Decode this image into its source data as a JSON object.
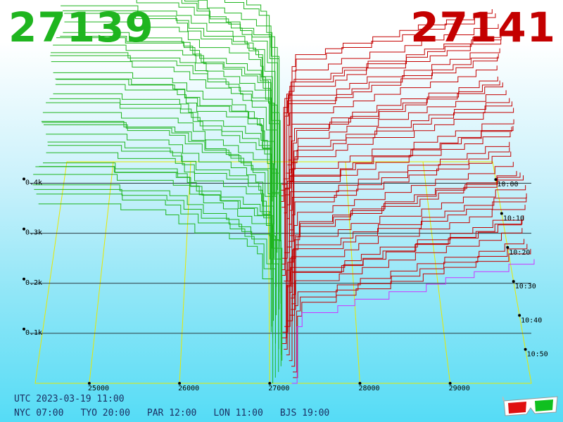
{
  "header": {
    "bid": "27139",
    "ask": "27141"
  },
  "footer": {
    "utc": "UTC 2023-03-19 11:00",
    "cities": [
      "NYC 07:00",
      "TYO 20:00",
      "PAR 12:00",
      "LON 11:00",
      "BJS 19:00"
    ]
  },
  "icons": {
    "glasses": "3d-glasses-icon"
  },
  "colors": {
    "bid": "#1fb51f",
    "ask": "#c40000",
    "latest": "#cc33ff",
    "grid": "#e8e800"
  },
  "chart_data": {
    "type": "3d-depth-waterfall",
    "price_ticks": [
      25000,
      26000,
      27000,
      28000,
      29000
    ],
    "volume_ticks": [
      "0.1k",
      "0.2k",
      "0.3k",
      "0.4k"
    ],
    "time_ticks": [
      "10:00",
      "10:10",
      "10:20",
      "10:30",
      "10:40",
      "10:50"
    ],
    "price_range": [
      24400,
      29900
    ],
    "volume_range": [
      0,
      450
    ],
    "mid_price": 27140,
    "bid_steps": [
      [
        24400,
        450
      ],
      [
        25300,
        438
      ],
      [
        25900,
        428
      ],
      [
        26050,
        410
      ],
      [
        26200,
        392
      ],
      [
        26500,
        380
      ],
      [
        26700,
        365
      ],
      [
        26850,
        350
      ],
      [
        26980,
        300
      ],
      [
        27080,
        0
      ]
    ],
    "ask_steps": [
      [
        27200,
        0
      ],
      [
        27250,
        220
      ],
      [
        27300,
        248
      ],
      [
        27800,
        262
      ],
      [
        28000,
        275
      ],
      [
        28300,
        290
      ],
      [
        28700,
        305
      ],
      [
        29000,
        318
      ],
      [
        29300,
        330
      ],
      [
        29600,
        345
      ],
      [
        29900,
        355
      ]
    ],
    "snapshots": 40,
    "latest_color": "purple"
  }
}
